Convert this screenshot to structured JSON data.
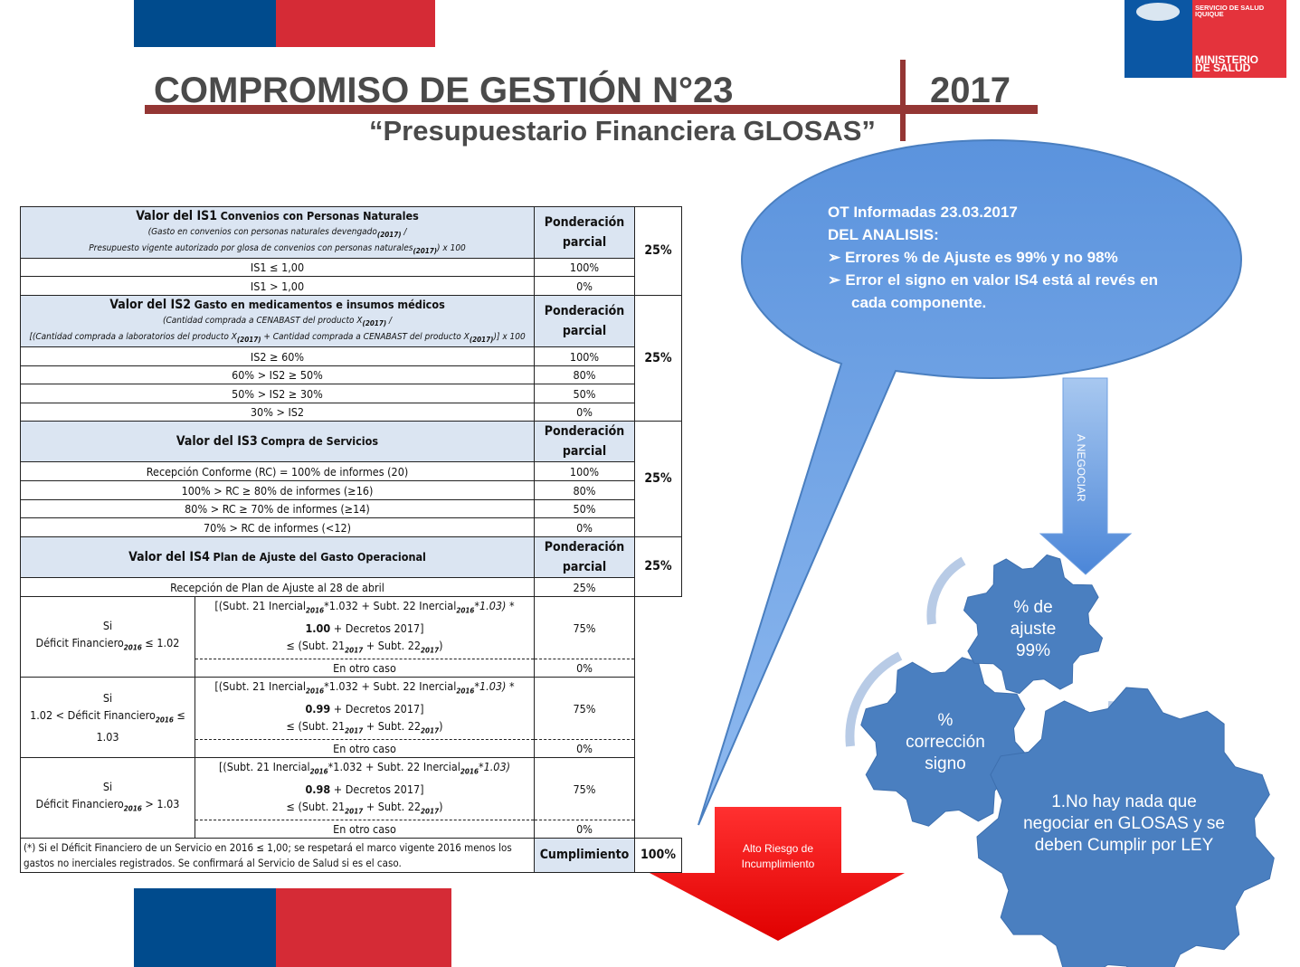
{
  "header": {
    "title": "COMPROMISO DE GESTIÓN N°23",
    "year": "2017",
    "subtitle": "“Presupuestario Financiera GLOSAS”",
    "logo_text": [
      "SERVICIO DE SALUD",
      "IQUIQUE",
      "MINISTERIO",
      "DE SALUD"
    ]
  },
  "colors": {
    "blue": "#004b8d",
    "red": "#d52b36",
    "header_bg": "#dbe5f2",
    "bubble": "#6fa3e8",
    "gear": "#4a7fc0",
    "arrow_red": "#ff0000"
  },
  "table": {
    "pond": [
      "Ponderación",
      "parcial"
    ],
    "is1": {
      "title_a": "Valor del IS1",
      "title_b": "Convenios con Personas Naturales",
      "f1": "(Gasto en convenios con personas naturales devengado",
      "f1s": "(2017)",
      "f1e": " /",
      "f2": "Presupuesto vigente autorizado por glosa de convenios con personas naturales",
      "f2s": "(2017)",
      "f2e": ") x 100",
      "rows": [
        [
          "IS1 ≤ 1,00",
          "100%"
        ],
        [
          "IS1 > 1,00",
          "0%"
        ]
      ],
      "weight": "25%"
    },
    "is2": {
      "title_a": "Valor del IS2",
      "title_b": "Gasto en medicamentos e insumos médicos",
      "f1": "(Cantidad comprada a CENABAST del producto X",
      "f1s": "(2017)",
      "f1e": " /",
      "f2": "[(Cantidad comprada a laboratorios del producto X",
      "f2s": "(2017)",
      "f2m": " + Cantidad comprada a CENABAST del producto X",
      "f2s2": "(2017)",
      "f2e": ")] x 100",
      "rows": [
        [
          "IS2 ≥ 60%",
          "100%"
        ],
        [
          "60% > IS2 ≥ 50%",
          "80%"
        ],
        [
          "50% > IS2 ≥ 30%",
          "50%"
        ],
        [
          "30% > IS2",
          "0%"
        ]
      ],
      "weight": "25%"
    },
    "is3": {
      "title_a": "Valor del IS3",
      "title_b": "Compra de Servicios",
      "rows": [
        [
          "Recepción Conforme (RC) = 100% de informes (20)",
          "100%"
        ],
        [
          "100% > RC ≥ 80% de informes (≥16)",
          "80%"
        ],
        [
          "80% > RC ≥ 70% de informes (≥14)",
          "50%"
        ],
        [
          "70% > RC de informes (<12)",
          "0%"
        ]
      ],
      "weight": "25%"
    },
    "is4": {
      "title_a": "Valor del IS4",
      "title_b": "Plan de Ajuste del Gasto Operacional",
      "row0": [
        "Recepción de Plan de Ajuste al 28 de abril",
        "25%"
      ],
      "weight": "25%",
      "blocks": [
        {
          "cond": [
            "Si",
            "Déficit Financiero",
            "2016",
            " ≤ 1.02"
          ],
          "factor": "1.00",
          "f_a": "[(Subt. 21 Inercial",
          "f_b": "*1.032 + Subt. 22 Inercial",
          "f_c": "*1.03) *",
          "f_d": " + Decretos 2017]",
          "val": "75%",
          "other": "En otro caso",
          "other_val": "0%"
        },
        {
          "cond": [
            "Si",
            "1.02 < Déficit Financiero",
            "2016",
            " ≤ 1.03"
          ],
          "factor": "0.99",
          "f_a": "[(Subt. 21 Inercial",
          "f_b": "*1.032 + Subt. 22 Inercial",
          "f_c": "*1.03) *",
          "f_d": " + Decretos 2017]",
          "val": "75%",
          "other": "En otro caso",
          "other_val": "0%"
        },
        {
          "cond": [
            "Si",
            "Déficit Financiero",
            "2016",
            " > 1.03"
          ],
          "factor": "0.98",
          "f_a": "[(Subt. 21 Inercial",
          "f_b": "*1.032 + Subt. 22 Inercial",
          "f_c": "*1.03)",
          "f_d": " + Decretos 2017]",
          "val": "75%",
          "other": "En otro caso",
          "other_val": "0%"
        }
      ],
      "sub2016": "2016",
      "sub2017": "2017",
      "le_a": "≤ (Subt. 21",
      "le_b": " + Subt. 22",
      "le_c": ")"
    },
    "footnote": "(*) Si el Déficit Financiero de un Servicio en 2016 ≤ 1,00; se respetará el marco vigente 2016 menos los gastos no inerciales registrados. Se confirmará al Servicio de Salud si es el caso.",
    "total_label": "Cumplimiento",
    "total": "100%"
  },
  "bubble": {
    "line1": "OT Informadas 23.03.2017",
    "line2": "DEL ANALISIS:",
    "bullets": [
      "Errores % de Ajuste es 99% y no 98%",
      "Error el signo en valor IS4 está al revés en cada componente."
    ]
  },
  "arrow_label": "A NEGOCIAR",
  "gears": {
    "small": [
      "% de",
      "ajuste",
      "99%"
    ],
    "mid": [
      "%",
      "corrección",
      "signo"
    ],
    "large": [
      "1.No hay nada que",
      "negociar en GLOSAS y se",
      "deben Cumplir por LEY"
    ]
  },
  "red_arrow": [
    "Alto Riesgo de",
    "Incumplimiento"
  ]
}
